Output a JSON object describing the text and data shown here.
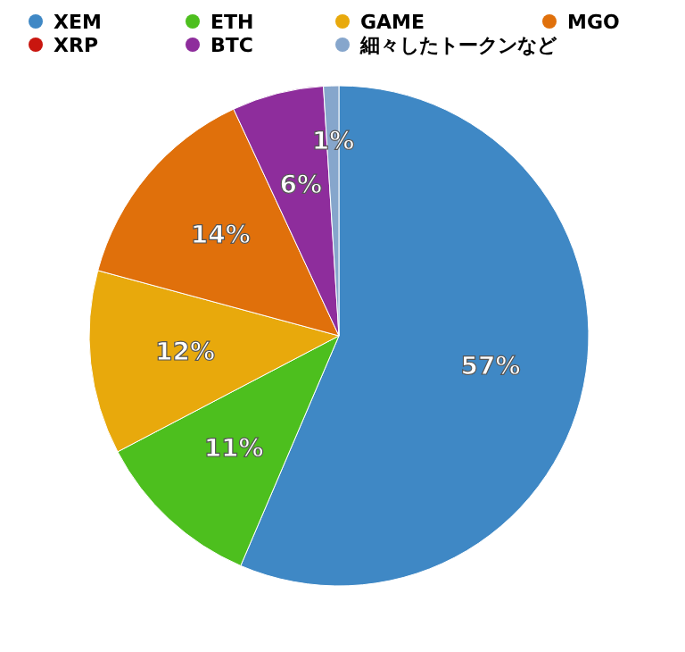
{
  "chart_data": {
    "type": "pie",
    "categories": [
      "XEM",
      "ETH",
      "GAME",
      "MGO",
      "XRP",
      "BTC",
      "細々したトークンなど"
    ],
    "values": [
      57,
      11,
      12,
      14,
      0,
      6,
      1
    ],
    "colors": [
      "#3f88c5",
      "#4dbf1e",
      "#e8a90c",
      "#e0700b",
      "#c9160f",
      "#8e2d9c",
      "#86a6cc"
    ],
    "value_labels": [
      "57%",
      "11%",
      "12%",
      "14%",
      null,
      "6%",
      "1%"
    ],
    "legend": "top"
  }
}
